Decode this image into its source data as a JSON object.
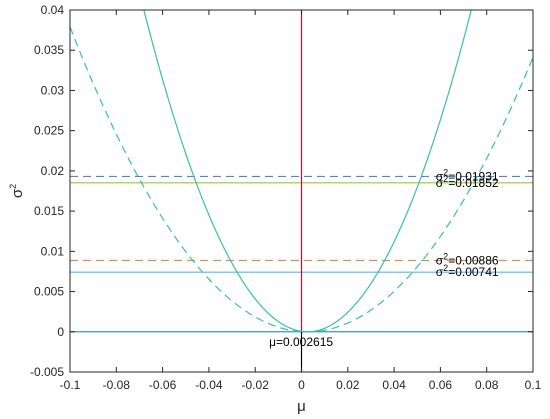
{
  "chart_data": {
    "type": "line",
    "xlabel": "μ",
    "ylabel_base": "σ",
    "ylabel_sup": "2",
    "xlim": [
      -0.1,
      0.1
    ],
    "ylim": [
      -0.005,
      0.04
    ],
    "xticks": [
      -0.1,
      -0.08,
      -0.06,
      -0.04,
      -0.02,
      0,
      0.02,
      0.04,
      0.06,
      0.08,
      0.1
    ],
    "xtick_labels": [
      "-0.1",
      "-0.08",
      "-0.06",
      "-0.04",
      "-0.02",
      "0",
      "0.02",
      "0.04",
      "0.06",
      "0.08",
      "0.1"
    ],
    "yticks": [
      -0.005,
      0,
      0.005,
      0.01,
      0.015,
      0.02,
      0.025,
      0.03,
      0.035,
      0.04
    ],
    "ytick_labels": [
      "-0.005",
      "0",
      "0.005",
      "0.01",
      "0.015",
      "0.02",
      "0.025",
      "0.03",
      "0.035",
      "0.04"
    ],
    "grid": false,
    "curves": [
      {
        "style": "solid",
        "color": "#3cbfa8",
        "vertex_x": 0.002615,
        "vertex_y": 0,
        "a": 8.0
      },
      {
        "style": "dashed",
        "color": "#3cbfa8",
        "vertex_x": 0.002615,
        "vertex_y": 0,
        "a": 3.6
      }
    ],
    "hlines": [
      {
        "y": 0.01931,
        "style": "dashed",
        "color": "#4a86c8"
      },
      {
        "y": 0.01852,
        "style": "solid",
        "color": "#9bc63c"
      },
      {
        "y": 0.00886,
        "style": "dashed",
        "color": "#c8955a"
      },
      {
        "y": 0.00741,
        "style": "solid",
        "color": "#5ab7e8"
      },
      {
        "y": 0,
        "style": "solid",
        "color": "#3a8fd8"
      }
    ],
    "vlines": [
      {
        "x": 0,
        "y_from": 0,
        "y_to": 0.04,
        "color": "#c0102a"
      },
      {
        "x": 0,
        "y_from": -0.005,
        "y_to": 0,
        "color": "#000000"
      }
    ],
    "annotations": [
      {
        "base": "σ",
        "sup": "2",
        "text": "=0.01931",
        "x": 0.058,
        "y": 0.01931
      },
      {
        "base": "σ",
        "sup": "2",
        "text": "=0.01852",
        "x": 0.058,
        "y": 0.01852
      },
      {
        "base": "σ",
        "sup": "2",
        "text": "=0.00886",
        "x": 0.058,
        "y": 0.00886
      },
      {
        "base": "σ",
        "sup": "2",
        "text": "=0.00741",
        "x": 0.058,
        "y": 0.00741
      },
      {
        "base": "",
        "sup": "",
        "text": "μ=0.002615",
        "x": -0.014,
        "y": 0
      }
    ]
  }
}
